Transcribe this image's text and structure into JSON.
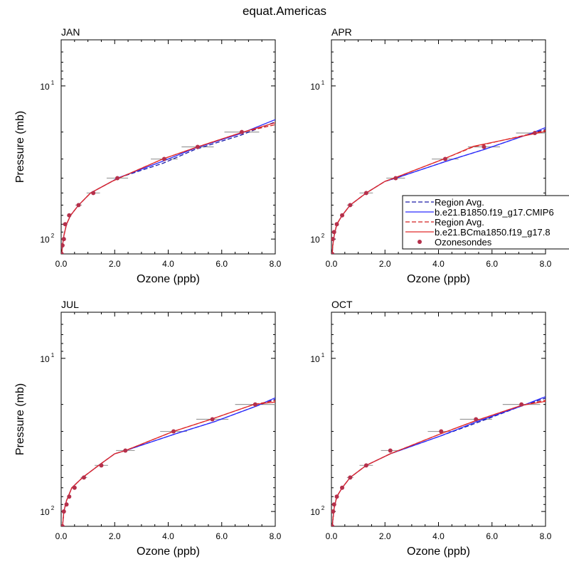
{
  "figure_title": "equat.Americas",
  "legend": {
    "entries": [
      {
        "label": "Region Avg.",
        "color": "#1a1aa6",
        "style": "dashed",
        "kind": "line"
      },
      {
        "label": "b.e21.B1850.f19_g17.CMIP6",
        "color": "#2b2bff",
        "style": "solid",
        "kind": "line"
      },
      {
        "label": "Region Avg.",
        "color": "#d42020",
        "style": "dashed",
        "kind": "line"
      },
      {
        "label": "b.e21.BCma1850.f19_g17.8",
        "color": "#e02a2a",
        "style": "solid",
        "kind": "line"
      },
      {
        "label": "Ozonesondes",
        "color": "#b5304b",
        "style": "marker",
        "kind": "marker"
      }
    ]
  },
  "colors": {
    "blue_dash": "#1a1aa6",
    "blue_solid": "#2b2bff",
    "red_dash": "#d42020",
    "red_solid": "#e02a2a",
    "obs": "#b5304b",
    "errbar": "#9a9a9a"
  },
  "chart_data": [
    {
      "type": "line",
      "title": "JAN",
      "xlabel": "Ozone (ppb)",
      "ylabel": "Pressure (mb)",
      "xlim": [
        0,
        8
      ],
      "ylim": [
        125,
        5
      ],
      "yscale": "log",
      "xticks": [
        "0.0",
        "2.0",
        "4.0",
        "6.0",
        "8.0"
      ],
      "ytick_labels": [
        {
          "value": 10,
          "label": "10",
          "exp": "1"
        },
        {
          "value": 100,
          "label": "10",
          "exp": "2"
        }
      ],
      "series": [
        {
          "name": "Region Avg. (b.e21.B1850)",
          "style": "blue_dash",
          "x": [
            0.02,
            0.05,
            0.1,
            0.2,
            0.35,
            0.65,
            1.1,
            1.9,
            2.1,
            3.8,
            5.0,
            6.7,
            8.0
          ],
          "y": [
            125,
            110,
            95,
            80,
            70,
            60,
            50,
            42,
            40,
            32,
            26,
            21,
            17.2
          ]
        },
        {
          "name": "b.e21.B1850.f19_g17.CMIP6",
          "style": "blue_solid",
          "x": [
            0.02,
            0.05,
            0.1,
            0.2,
            0.35,
            0.65,
            1.1,
            1.9,
            2.1,
            3.8,
            5.0,
            6.7,
            8.0
          ],
          "y": [
            125,
            110,
            95,
            80,
            70,
            60,
            50,
            42,
            40,
            31,
            25.5,
            20.5,
            16.6
          ]
        },
        {
          "name": "Region Avg. (b.e21.BCma1850)",
          "style": "red_dash",
          "x": [
            0.02,
            0.05,
            0.1,
            0.2,
            0.35,
            0.65,
            1.1,
            1.9,
            2.3,
            3.8,
            5.1,
            6.8,
            8.0
          ],
          "y": [
            125,
            110,
            95,
            80,
            70,
            60,
            50,
            42,
            39,
            30,
            25,
            20,
            17.9
          ]
        },
        {
          "name": "b.e21.BCma1850.f19_g17.8",
          "style": "red_solid",
          "x": [
            0.02,
            0.05,
            0.1,
            0.2,
            0.35,
            0.65,
            1.1,
            1.9,
            2.3,
            3.8,
            5.1,
            6.8,
            8.0
          ],
          "y": [
            125,
            110,
            95,
            80,
            70,
            60,
            50,
            42,
            39,
            30,
            25,
            20,
            17.4
          ]
        }
      ],
      "observations": {
        "name": "Ozonesondes",
        "x": [
          0.02,
          0.05,
          0.1,
          0.15,
          0.3,
          0.65,
          1.2,
          2.1,
          3.85,
          5.1,
          6.75
        ],
        "y": [
          125,
          110,
          100,
          80,
          70,
          60,
          50,
          40,
          30,
          25,
          20
        ],
        "xerr": [
          0.02,
          0.03,
          0.04,
          0.05,
          0.08,
          0.12,
          0.25,
          0.4,
          0.5,
          0.6,
          0.65
        ]
      }
    },
    {
      "type": "line",
      "title": "APR",
      "xlabel": "Ozone (ppb)",
      "ylabel": "",
      "xlim": [
        0,
        8
      ],
      "ylim": [
        125,
        5
      ],
      "yscale": "log",
      "xticks": [
        "0.0",
        "2.0",
        "4.0",
        "6.0",
        "8.0"
      ],
      "ytick_labels": [
        {
          "value": 10,
          "label": "10",
          "exp": "1"
        },
        {
          "value": 100,
          "label": "10",
          "exp": "2"
        }
      ],
      "series": [
        {
          "name": "Region Avg. (b.e21.B1850)",
          "style": "blue_dash",
          "x": [
            0.03,
            0.05,
            0.1,
            0.2,
            0.4,
            0.7,
            1.3,
            2.0,
            2.4,
            4.3,
            5.7,
            7.5,
            8.0
          ],
          "y": [
            125,
            110,
            95,
            80,
            70,
            60,
            50,
            42,
            40,
            31,
            26,
            20.3,
            19.2
          ]
        },
        {
          "name": "b.e21.B1850.f19_g17.CMIP6",
          "style": "blue_solid",
          "x": [
            0.03,
            0.05,
            0.1,
            0.2,
            0.4,
            0.7,
            1.3,
            2.0,
            2.4,
            4.3,
            5.7,
            7.5,
            8.0
          ],
          "y": [
            125,
            110,
            95,
            80,
            70,
            60,
            50,
            42,
            40,
            31,
            26,
            20.3,
            18.7
          ]
        },
        {
          "name": "Region Avg. (b.e21.BCma1850)",
          "style": "red_dash",
          "x": [
            0.03,
            0.05,
            0.1,
            0.2,
            0.4,
            0.7,
            1.3,
            2.0,
            2.5,
            4.2,
            5.3,
            7.6,
            8.0
          ],
          "y": [
            125,
            110,
            95,
            80,
            70,
            60,
            50,
            42,
            39,
            30,
            25,
            20.3,
            19.5
          ]
        },
        {
          "name": "b.e21.BCma1850.f19_g17.8",
          "style": "red_solid",
          "x": [
            0.03,
            0.05,
            0.1,
            0.2,
            0.4,
            0.7,
            1.3,
            2.0,
            2.5,
            4.2,
            5.3,
            7.6,
            8.0
          ],
          "y": [
            125,
            110,
            95,
            80,
            70,
            60,
            50,
            42,
            39,
            30,
            24.8,
            20.5,
            19.8
          ]
        }
      ],
      "observations": {
        "name": "Ozonesondes",
        "x": [
          0.03,
          0.05,
          0.1,
          0.2,
          0.4,
          0.7,
          1.3,
          2.4,
          4.25,
          5.7,
          7.6
        ],
        "y": [
          125,
          100,
          90,
          80,
          70,
          60,
          50,
          40,
          30,
          25,
          20.3
        ],
        "xerr": [
          0.02,
          0.03,
          0.04,
          0.05,
          0.08,
          0.12,
          0.25,
          0.35,
          0.5,
          0.6,
          0.7
        ]
      }
    },
    {
      "type": "line",
      "title": "JUL",
      "xlabel": "Ozone (ppb)",
      "ylabel": "Pressure (mb)",
      "xlim": [
        0,
        8
      ],
      "ylim": [
        125,
        5
      ],
      "yscale": "log",
      "xticks": [
        "0.0",
        "2.0",
        "4.0",
        "6.0",
        "8.0"
      ],
      "ytick_labels": [
        {
          "value": 10,
          "label": "10",
          "exp": "1"
        },
        {
          "value": 100,
          "label": "10",
          "exp": "2"
        }
      ],
      "series": [
        {
          "name": "Region Avg. (b.e21.B1850)",
          "style": "blue_dash",
          "x": [
            0.05,
            0.1,
            0.2,
            0.4,
            0.8,
            1.4,
            2.0,
            2.4,
            4.3,
            5.7,
            7.3,
            8.0
          ],
          "y": [
            125,
            100,
            85,
            70,
            60,
            50,
            42,
            40,
            31,
            26,
            20.5,
            18.5
          ]
        },
        {
          "name": "b.e21.B1850.f19_g17.CMIP6",
          "style": "blue_solid",
          "x": [
            0.05,
            0.1,
            0.2,
            0.4,
            0.8,
            1.4,
            2.0,
            2.4,
            4.3,
            5.7,
            7.3,
            8.0
          ],
          "y": [
            125,
            100,
            85,
            70,
            60,
            50,
            42,
            40,
            31,
            26,
            20.5,
            18.1
          ]
        },
        {
          "name": "Region Avg. (b.e21.BCma1850)",
          "style": "red_dash",
          "x": [
            0.05,
            0.1,
            0.2,
            0.4,
            0.8,
            1.4,
            2.0,
            2.4,
            4.2,
            5.6,
            7.2,
            8.0
          ],
          "y": [
            125,
            100,
            85,
            70,
            60,
            50,
            42,
            40,
            30,
            25,
            20,
            18.9
          ]
        },
        {
          "name": "b.e21.BCma1850.f19_g17.8",
          "style": "red_solid",
          "x": [
            0.05,
            0.1,
            0.2,
            0.4,
            0.8,
            1.4,
            2.0,
            2.4,
            4.2,
            5.6,
            7.2,
            8.0
          ],
          "y": [
            125,
            100,
            85,
            70,
            60,
            50,
            42,
            40,
            30,
            25,
            20,
            19.3
          ]
        }
      ],
      "observations": {
        "name": "Ozonesondes",
        "x": [
          0.05,
          0.1,
          0.2,
          0.3,
          0.5,
          0.85,
          1.5,
          2.4,
          4.2,
          5.65,
          7.25
        ],
        "y": [
          125,
          100,
          90,
          80,
          70,
          60,
          50,
          40,
          30,
          25,
          20
        ],
        "xerr": [
          0.02,
          0.03,
          0.04,
          0.06,
          0.08,
          0.12,
          0.25,
          0.35,
          0.5,
          0.6,
          0.75
        ]
      }
    },
    {
      "type": "line",
      "title": "OCT",
      "xlabel": "Ozone (ppb)",
      "ylabel": "",
      "xlim": [
        0,
        8
      ],
      "ylim": [
        125,
        5
      ],
      "yscale": "log",
      "xticks": [
        "0.0",
        "2.0",
        "4.0",
        "6.0",
        "8.0"
      ],
      "ytick_labels": [
        {
          "value": 10,
          "label": "10",
          "exp": "1"
        },
        {
          "value": 100,
          "label": "10",
          "exp": "2"
        }
      ],
      "series": [
        {
          "name": "Region Avg. (b.e21.B1850)",
          "style": "blue_dash",
          "x": [
            0.03,
            0.06,
            0.1,
            0.2,
            0.4,
            0.7,
            1.3,
            2.2,
            4.1,
            5.4,
            7.1,
            8.0
          ],
          "y": [
            125,
            110,
            95,
            80,
            70,
            60,
            50,
            42,
            32,
            26.5,
            20.5,
            18.2
          ]
        },
        {
          "name": "b.e21.B1850.f19_g17.CMIP6",
          "style": "blue_solid",
          "x": [
            0.03,
            0.06,
            0.1,
            0.2,
            0.4,
            0.7,
            1.3,
            2.2,
            4.1,
            5.4,
            7.1,
            8.0
          ],
          "y": [
            125,
            110,
            95,
            80,
            70,
            60,
            50,
            42,
            32,
            26,
            20.5,
            17.8
          ]
        },
        {
          "name": "Region Avg. (b.e21.BCma1850)",
          "style": "red_dash",
          "x": [
            0.03,
            0.06,
            0.1,
            0.2,
            0.4,
            0.7,
            1.3,
            2.2,
            4.1,
            5.4,
            7.1,
            8.0
          ],
          "y": [
            125,
            110,
            95,
            80,
            70,
            60,
            50,
            42,
            31,
            25.5,
            20.3,
            18.8
          ]
        },
        {
          "name": "b.e21.BCma1850.f19_g17.8",
          "style": "red_solid",
          "x": [
            0.03,
            0.06,
            0.1,
            0.2,
            0.4,
            0.7,
            1.3,
            2.2,
            4.1,
            5.4,
            7.1,
            8.0
          ],
          "y": [
            125,
            110,
            95,
            80,
            70,
            60,
            50,
            42,
            31,
            25.5,
            20.3,
            19.1
          ]
        }
      ],
      "observations": {
        "name": "Ozonesondes",
        "x": [
          0.03,
          0.06,
          0.1,
          0.2,
          0.4,
          0.7,
          1.3,
          2.2,
          4.1,
          5.4,
          7.1
        ],
        "y": [
          125,
          100,
          90,
          80,
          70,
          60,
          50,
          40,
          30,
          25,
          20
        ],
        "xerr": [
          0.02,
          0.03,
          0.04,
          0.05,
          0.08,
          0.12,
          0.25,
          0.35,
          0.5,
          0.6,
          0.7
        ]
      }
    }
  ]
}
